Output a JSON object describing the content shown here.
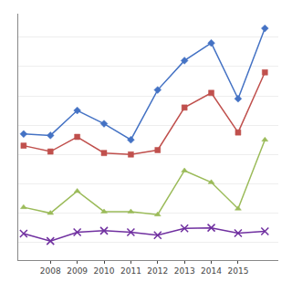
{
  "chart_data": {
    "type": "line",
    "x": [
      2007,
      2008,
      2009,
      2010,
      2011,
      2012,
      2013,
      2014,
      2015,
      2016
    ],
    "series": [
      {
        "color": "#9BBB59",
        "marker": "triangle",
        "values": [
          120,
          100,
          175,
          105,
          105,
          95,
          245,
          205,
          115,
          350
        ]
      },
      {
        "color": "#C0504D",
        "marker": "square",
        "values": [
          330,
          310,
          360,
          305,
          300,
          315,
          460,
          510,
          375,
          580
        ]
      },
      {
        "color": "#4472C4",
        "marker": "diamond",
        "values": [
          370,
          365,
          450,
          405,
          350,
          520,
          620,
          680,
          490,
          730
        ]
      },
      {
        "color": "#7030A0",
        "marker": "x",
        "values": [
          30,
          5,
          35,
          40,
          35,
          25,
          48,
          50,
          32,
          38
        ]
      }
    ],
    "xlim": [
      2006.8,
      2016.5
    ],
    "xticks": [
      2008,
      2009,
      2010,
      2011,
      2012,
      2013,
      2014,
      2015
    ],
    "ylim": [
      -60,
      780
    ],
    "yticks": [
      0,
      100,
      200,
      300,
      400,
      500,
      600,
      700
    ],
    "grid": "y",
    "tick_labels": "x"
  }
}
